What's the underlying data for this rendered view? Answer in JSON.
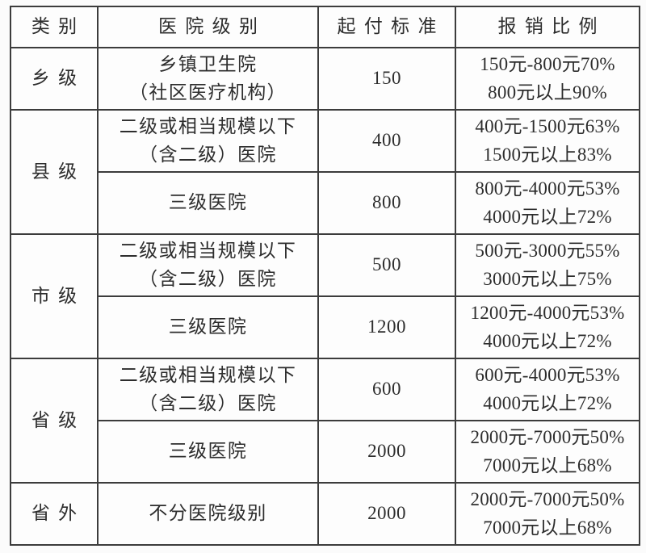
{
  "colors": {
    "border": "#3c3c3c",
    "text": "#2d2d2d",
    "background": "#fbfbfb"
  },
  "table": {
    "headers": {
      "category": "类别",
      "hospital_level": "医院级别",
      "deductible": "起付标准",
      "ratio": "报销比例"
    },
    "rows": [
      {
        "category": "乡级",
        "hospital": "乡镇卫生院\n（社区医疗机构）",
        "deductible": "150",
        "ratio": "150元-800元70%\n800元以上90%"
      },
      {
        "category": "县级",
        "hospital": "二级或相当规模以下\n（含二级）医院",
        "deductible": "400",
        "ratio": "400元-1500元63%\n1500元以上83%"
      },
      {
        "hospital": "三级医院",
        "deductible": "800",
        "ratio": "800元-4000元53%\n4000元以上72%"
      },
      {
        "category": "市级",
        "hospital": "二级或相当规模以下\n（含二级）医院",
        "deductible": "500",
        "ratio": "500元-3000元55%\n3000元以上75%"
      },
      {
        "hospital": "三级医院",
        "deductible": "1200",
        "ratio": "1200元-4000元53%\n4000元以上72%"
      },
      {
        "category": "省级",
        "hospital": "二级或相当规模以下\n（含二级）医院",
        "deductible": "600",
        "ratio": "600元-4000元53%\n4000元以上72%"
      },
      {
        "hospital": "三级医院",
        "deductible": "2000",
        "ratio": "2000元-7000元50%\n7000元以上68%"
      },
      {
        "category": "省外",
        "hospital": "不分医院级别",
        "deductible": "2000",
        "ratio": "2000元-7000元50%\n7000元以上68%"
      }
    ]
  }
}
